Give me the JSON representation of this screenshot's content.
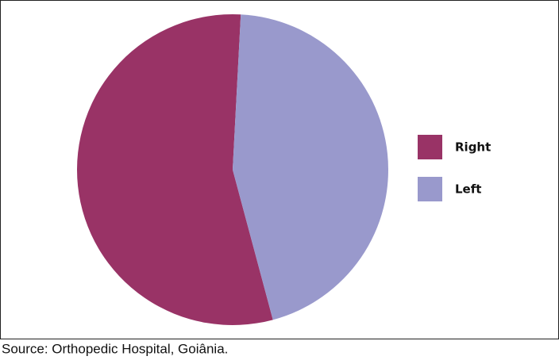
{
  "chart_data": {
    "type": "pie",
    "categories": [
      "Right",
      "Left"
    ],
    "values": [
      55,
      45
    ],
    "colors": [
      "#993366",
      "#9999cc"
    ],
    "source": "Source: Orthopedic Hospital, Goiânia."
  }
}
